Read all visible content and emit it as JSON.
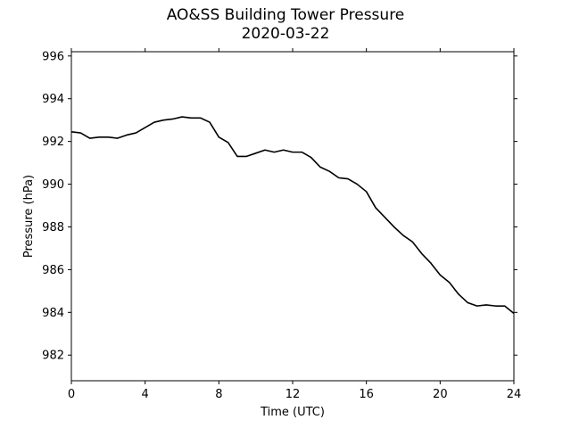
{
  "chart_data": {
    "type": "line",
    "title": "AO&SS Building Tower Pressure",
    "subtitle": "2020-03-22",
    "xlabel": "Time (UTC)",
    "ylabel": "Pressure (hPa)",
    "xlim": [
      0,
      24
    ],
    "ylim": [
      980.8,
      996.2
    ],
    "xticks": [
      0,
      4,
      8,
      12,
      16,
      20,
      24
    ],
    "yticks": [
      982,
      984,
      986,
      988,
      990,
      992,
      994,
      996
    ],
    "grid": false,
    "line_color": "#000000",
    "series": [
      {
        "x": [
          0,
          0.5,
          1,
          1.5,
          2,
          2.5,
          3,
          3.5,
          4,
          4.5,
          5,
          5.5,
          6,
          6.5,
          7,
          7.5,
          8,
          8.5,
          9,
          9.5,
          10,
          10.5,
          11,
          11.5,
          12,
          12.5,
          13,
          13.5,
          14,
          14.5,
          15,
          15.5,
          16,
          16.5,
          17,
          17.5,
          18,
          18.5,
          19,
          19.5,
          20,
          20.5,
          21,
          21.5,
          22,
          22.5,
          23,
          23.5,
          24
        ],
        "values": [
          992.45,
          992.4,
          992.15,
          992.2,
          992.2,
          992.15,
          992.3,
          992.4,
          992.65,
          992.9,
          993.0,
          993.05,
          993.15,
          993.1,
          993.1,
          992.9,
          992.2,
          991.95,
          991.3,
          991.3,
          991.45,
          991.6,
          991.5,
          991.6,
          991.5,
          991.5,
          991.25,
          990.8,
          990.6,
          990.3,
          990.25,
          990.0,
          989.65,
          988.9,
          988.45,
          988.0,
          987.6,
          987.3,
          986.75,
          986.3,
          985.75,
          985.4,
          984.85,
          984.45,
          984.3,
          984.35,
          984.3,
          984.3,
          983.95
        ]
      }
    ]
  }
}
